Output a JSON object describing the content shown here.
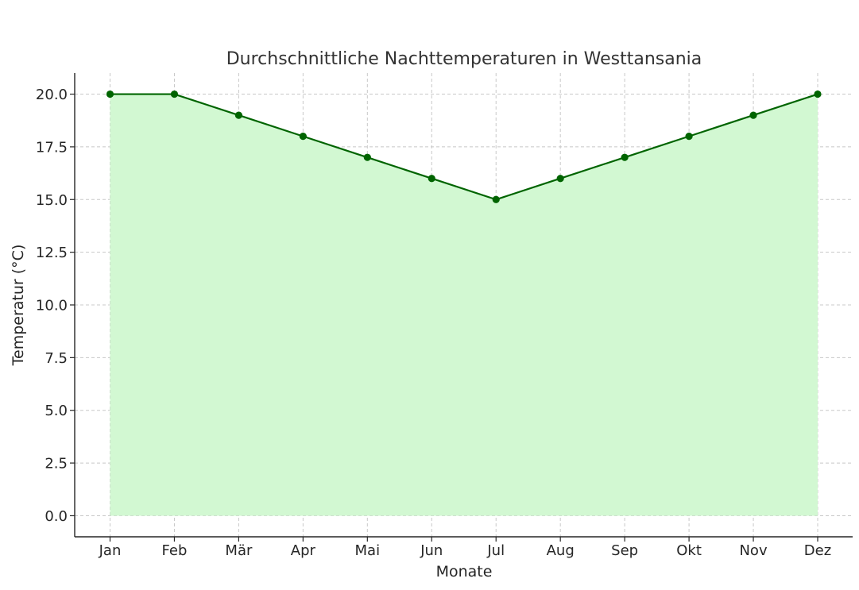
{
  "chart_data": {
    "type": "area",
    "title": "Durchschnittliche Nachttemperaturen in Westtansania",
    "xlabel": "Monate",
    "ylabel": "Temperatur (°C)",
    "categories": [
      "Jan",
      "Feb",
      "Mär",
      "Apr",
      "Mai",
      "Jun",
      "Jul",
      "Aug",
      "Sep",
      "Okt",
      "Nov",
      "Dez"
    ],
    "series": [
      {
        "values": [
          20,
          20,
          19,
          18,
          17,
          16,
          15,
          16,
          17,
          18,
          19,
          20
        ]
      }
    ],
    "ylim": [
      -1,
      21
    ],
    "yticks": [
      "0.0",
      "2.5",
      "5.0",
      "7.5",
      "10.0",
      "12.5",
      "15.0",
      "17.5",
      "20.0"
    ],
    "ytick_values": [
      0,
      2.5,
      5,
      7.5,
      10,
      12.5,
      15,
      17.5,
      20
    ],
    "grid": true,
    "colors": {
      "line": "#006400",
      "fill": "#d2f8d2",
      "marker": "#006400"
    }
  }
}
